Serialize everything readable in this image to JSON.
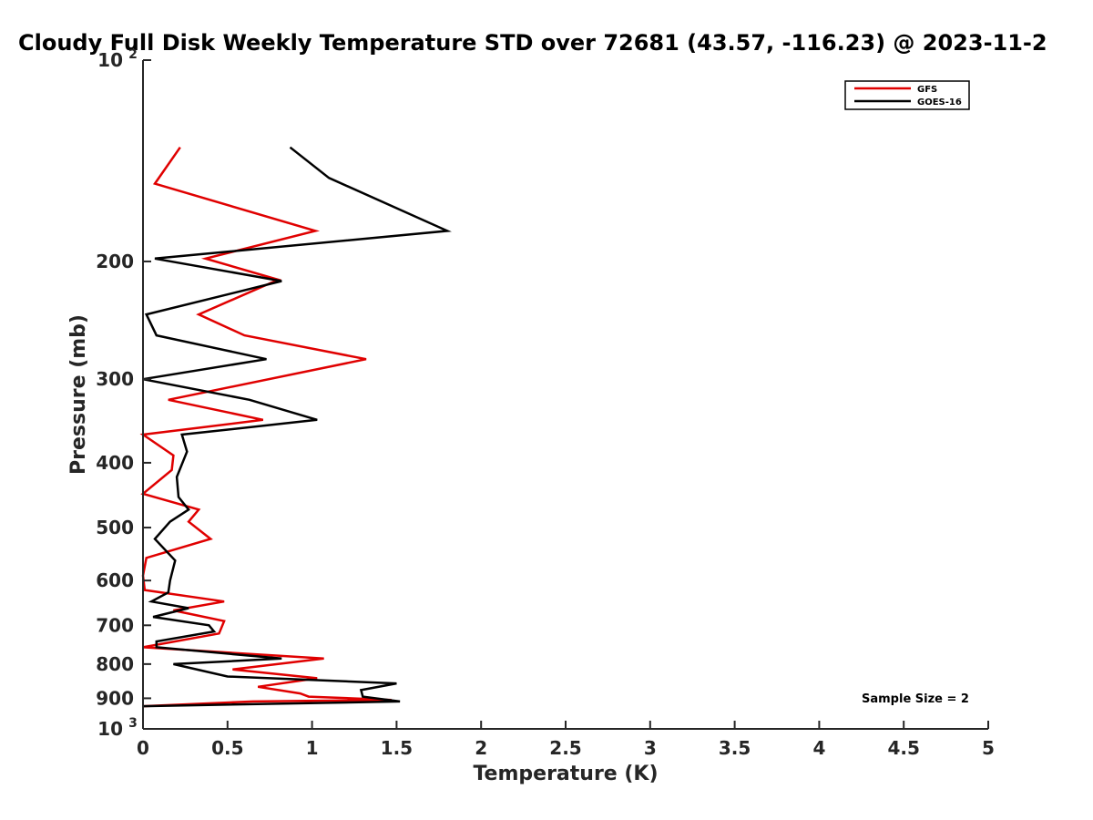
{
  "chart_data": {
    "type": "line",
    "title": "Cloudy Full Disk Weekly Temperature STD over 72681 (43.57, -116.23) @ 2023-11-2",
    "xlabel": "Temperature (K)",
    "ylabel": "Pressure (mb)",
    "xlim": [
      0,
      5
    ],
    "ylim": [
      100,
      1000
    ],
    "y_scale": "log",
    "y_reversed": true,
    "x_ticks": [
      "0",
      "0.5",
      "1",
      "1.5",
      "2",
      "2.5",
      "3",
      "3.5",
      "4",
      "4.5",
      "5"
    ],
    "y_ticks": [
      {
        "value": 100,
        "label": "10",
        "exp": "2"
      },
      {
        "value": 200,
        "label": "200"
      },
      {
        "value": 300,
        "label": "300"
      },
      {
        "value": 400,
        "label": "400"
      },
      {
        "value": 500,
        "label": "500"
      },
      {
        "value": 600,
        "label": "600"
      },
      {
        "value": 700,
        "label": "700"
      },
      {
        "value": 800,
        "label": "800"
      },
      {
        "value": 900,
        "label": "900"
      },
      {
        "value": 1000,
        "label": "10",
        "exp": "3"
      }
    ],
    "grid": false,
    "legend_position": "top-right",
    "annotation": "Sample Size = 2",
    "series": [
      {
        "name": "GFS",
        "color": "#e00000",
        "x": [
          0.22,
          0.07,
          1.02,
          0.37,
          0.8,
          0.33,
          0.6,
          1.32,
          0.15,
          0.71,
          0.0,
          0.18,
          0.17,
          0.0,
          0.33,
          0.27,
          0.4,
          0.02,
          0.0,
          0.01,
          0.48,
          0.18,
          0.48,
          0.45,
          0.0,
          1.07,
          0.53,
          1.03,
          0.68,
          0.93,
          0.98,
          1.47,
          0.65,
          0.0
        ],
        "y": [
          135,
          153,
          180,
          198,
          213,
          240,
          258,
          280,
          322,
          345,
          363,
          390,
          410,
          445,
          470,
          490,
          520,
          555,
          590,
          620,
          645,
          665,
          690,
          720,
          755,
          785,
          815,
          840,
          865,
          885,
          895,
          905,
          910,
          925
        ]
      },
      {
        "name": "GOES-16",
        "color": "#000000",
        "x": [
          0.87,
          1.1,
          1.8,
          0.07,
          0.82,
          0.02,
          0.08,
          0.73,
          0.0,
          0.63,
          1.03,
          0.23,
          0.26,
          0.2,
          0.21,
          0.27,
          0.16,
          0.07,
          0.19,
          0.16,
          0.15,
          0.05,
          0.27,
          0.06,
          0.39,
          0.42,
          0.08,
          0.08,
          0.82,
          0.18,
          0.5,
          1.5,
          1.29,
          1.3,
          1.52,
          0.0
        ],
        "y": [
          135,
          150,
          180,
          198,
          214,
          240,
          258,
          280,
          300,
          322,
          345,
          363,
          385,
          420,
          450,
          470,
          490,
          520,
          560,
          600,
          625,
          645,
          660,
          680,
          700,
          715,
          740,
          755,
          785,
          800,
          835,
          855,
          875,
          895,
          910,
          925
        ]
      }
    ]
  }
}
